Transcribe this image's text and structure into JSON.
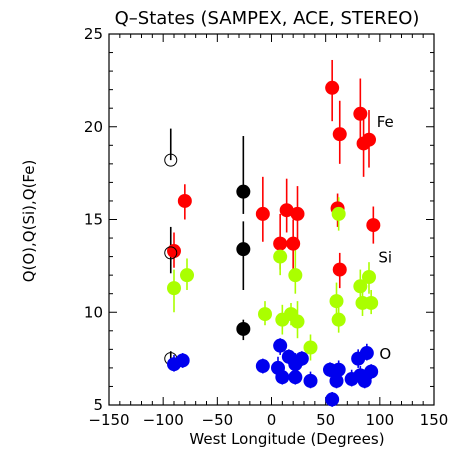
{
  "chart_data": {
    "type": "scatter",
    "title": "Q–States (SAMPEX, ACE, STEREO)",
    "xlabel": "West Longitude (Degrees)",
    "ylabel": "Q(O),Q(Si),Q(Fe)",
    "xlim": [
      -150,
      150
    ],
    "ylim": [
      5,
      25
    ],
    "xticks": [
      "−150",
      "−100",
      "−50",
      "0",
      "50",
      "100",
      "150"
    ],
    "xtick_values": [
      -150,
      -100,
      -50,
      0,
      50,
      100,
      150
    ],
    "yticks": [
      "5",
      "10",
      "15",
      "20",
      "25"
    ],
    "ytick_values": [
      5,
      10,
      15,
      20,
      25
    ],
    "grid": false,
    "series_labels": [
      {
        "text": "Fe",
        "x": 105,
        "y": 20.3
      },
      {
        "text": "Si",
        "x": 105,
        "y": 13.0
      },
      {
        "text": "O",
        "x": 105,
        "y": 7.8
      }
    ],
    "series": [
      {
        "color": "#ff0000",
        "marker": "filled-circle",
        "points": [
          {
            "x": -90,
            "y": 13.3,
            "lo": 12.4,
            "hi": 14.3
          },
          {
            "x": -80,
            "y": 16.0,
            "lo": 15.0,
            "hi": 16.9
          },
          {
            "x": -8,
            "y": 15.3,
            "lo": 13.8,
            "hi": 17.3
          },
          {
            "x": 8,
            "y": 13.7,
            "lo": 12.3,
            "hi": 15.3
          },
          {
            "x": 14,
            "y": 15.5,
            "lo": 14.3,
            "hi": 17.2
          },
          {
            "x": 20,
            "y": 13.7,
            "lo": 12.3,
            "hi": 15.0
          },
          {
            "x": 24,
            "y": 15.3,
            "lo": 13.8,
            "hi": 16.8
          },
          {
            "x": 56,
            "y": 22.1,
            "lo": 20.3,
            "hi": 23.6
          },
          {
            "x": 61,
            "y": 15.6,
            "lo": 14.6,
            "hi": 16.4
          },
          {
            "x": 63,
            "y": 19.6,
            "lo": 18.0,
            "hi": 21.4
          },
          {
            "x": 63,
            "y": 12.3,
            "lo": 11.3,
            "hi": 13.2
          },
          {
            "x": 82,
            "y": 20.7,
            "lo": 19.0,
            "hi": 22.6
          },
          {
            "x": 85,
            "y": 19.1,
            "lo": 17.3,
            "hi": 20.8
          },
          {
            "x": 90,
            "y": 19.3,
            "lo": 17.8,
            "hi": 20.9
          },
          {
            "x": 94,
            "y": 14.7,
            "lo": 13.7,
            "hi": 15.7
          }
        ]
      },
      {
        "color": "#000000",
        "marker": "filled-circle",
        "points": [
          {
            "x": -26,
            "y": 16.5,
            "lo": 15.3,
            "hi": 19.5
          },
          {
            "x": -26,
            "y": 13.4,
            "lo": 11.2,
            "hi": 14.9
          },
          {
            "x": -26,
            "y": 9.1,
            "lo": 8.5,
            "hi": 9.6
          }
        ]
      },
      {
        "color": "#000000",
        "marker": "open-circle",
        "points": [
          {
            "x": -93,
            "y": 18.2,
            "lo": 18.2,
            "hi": 19.9
          },
          {
            "x": -93,
            "y": 13.2,
            "lo": 12.1,
            "hi": 14.6
          },
          {
            "x": -93,
            "y": 7.5,
            "lo": 7.1,
            "hi": 7.9
          }
        ]
      },
      {
        "color": "#aaff00",
        "marker": "filled-circle",
        "points": [
          {
            "x": -90,
            "y": 11.3,
            "lo": 10.0,
            "hi": 12.3
          },
          {
            "x": -78,
            "y": 12.0,
            "lo": 11.2,
            "hi": 12.9
          },
          {
            "x": -6,
            "y": 9.9,
            "lo": 9.3,
            "hi": 10.6
          },
          {
            "x": 8,
            "y": 13.0,
            "lo": 12.0,
            "hi": 14.0
          },
          {
            "x": 10,
            "y": 9.6,
            "lo": 8.8,
            "hi": 10.4
          },
          {
            "x": 18,
            "y": 9.9,
            "lo": 9.3,
            "hi": 10.5
          },
          {
            "x": 22,
            "y": 12.0,
            "lo": 11.0,
            "hi": 13.5
          },
          {
            "x": 24,
            "y": 9.5,
            "lo": 8.6,
            "hi": 10.6
          },
          {
            "x": 36,
            "y": 8.1,
            "lo": 7.4,
            "hi": 8.8
          },
          {
            "x": 60,
            "y": 10.6,
            "lo": 9.6,
            "hi": 11.6
          },
          {
            "x": 62,
            "y": 15.3,
            "lo": 14.4,
            "hi": 16.2
          },
          {
            "x": 62,
            "y": 9.6,
            "lo": 8.9,
            "hi": 10.3
          },
          {
            "x": 82,
            "y": 11.4,
            "lo": 10.6,
            "hi": 12.3
          },
          {
            "x": 84,
            "y": 10.5,
            "lo": 9.8,
            "hi": 11.3
          },
          {
            "x": 90,
            "y": 11.9,
            "lo": 11.0,
            "hi": 12.7
          },
          {
            "x": 92,
            "y": 10.5,
            "lo": 9.9,
            "hi": 11.2
          }
        ]
      },
      {
        "color": "#0000ee",
        "marker": "filled-circle",
        "points": [
          {
            "x": -90,
            "y": 7.2,
            "lo": 6.8,
            "hi": 7.7
          },
          {
            "x": -82,
            "y": 7.4,
            "lo": 7.0,
            "hi": 7.8
          },
          {
            "x": -8,
            "y": 7.1,
            "lo": 6.7,
            "hi": 7.5
          },
          {
            "x": 6,
            "y": 7.0,
            "lo": 6.4,
            "hi": 7.6
          },
          {
            "x": 8,
            "y": 8.2,
            "lo": 7.7,
            "hi": 8.6
          },
          {
            "x": 10,
            "y": 6.5,
            "lo": 6.1,
            "hi": 7.0
          },
          {
            "x": 16,
            "y": 7.6,
            "lo": 7.2,
            "hi": 8.0
          },
          {
            "x": 22,
            "y": 7.2,
            "lo": 6.7,
            "hi": 7.8
          },
          {
            "x": 22,
            "y": 6.5,
            "lo": 6.1,
            "hi": 6.9
          },
          {
            "x": 28,
            "y": 7.5,
            "lo": 7.1,
            "hi": 7.9
          },
          {
            "x": 36,
            "y": 6.3,
            "lo": 5.9,
            "hi": 6.8
          },
          {
            "x": 54,
            "y": 6.9,
            "lo": 6.5,
            "hi": 7.3
          },
          {
            "x": 56,
            "y": 5.3,
            "lo": 4.9,
            "hi": 5.7
          },
          {
            "x": 60,
            "y": 6.3,
            "lo": 5.9,
            "hi": 6.8
          },
          {
            "x": 62,
            "y": 6.9,
            "lo": 6.4,
            "hi": 7.4
          },
          {
            "x": 74,
            "y": 6.4,
            "lo": 6.0,
            "hi": 6.9
          },
          {
            "x": 80,
            "y": 7.5,
            "lo": 7.0,
            "hi": 8.0
          },
          {
            "x": 82,
            "y": 6.6,
            "lo": 6.2,
            "hi": 7.1
          },
          {
            "x": 88,
            "y": 7.8,
            "lo": 7.4,
            "hi": 8.3
          },
          {
            "x": 86,
            "y": 6.3,
            "lo": 5.9,
            "hi": 6.8
          },
          {
            "x": 92,
            "y": 6.8,
            "lo": 6.4,
            "hi": 7.2
          }
        ]
      }
    ]
  }
}
